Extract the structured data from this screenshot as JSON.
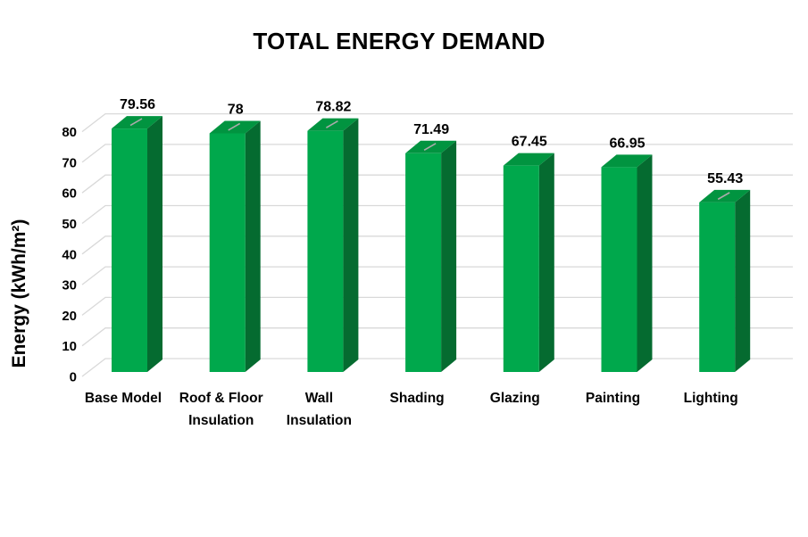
{
  "chart_data": {
    "type": "bar",
    "style": "3d-column",
    "title": "TOTAL ENERGY DEMAND",
    "xlabel": "",
    "ylabel": "Energy (kWh/m²)",
    "categories": [
      "Base Model",
      "Roof & Floor\nInsulation",
      "Wall\nInsulation",
      "Shading",
      "Glazing",
      "Painting",
      "Lighting"
    ],
    "values": [
      79.56,
      78,
      78.82,
      71.49,
      67.45,
      66.95,
      55.43
    ],
    "value_labels": [
      "79.56",
      "78",
      "78.82",
      "71.49",
      "67.45",
      "66.95",
      "55.43"
    ],
    "yticks": [
      0,
      10,
      20,
      30,
      40,
      50,
      60,
      70,
      80
    ],
    "ylim": [
      0,
      80
    ],
    "grid": true,
    "legend": false,
    "colors": {
      "bar_front": "#00A84C",
      "bar_side": "#056B30",
      "bar_top": "#019440",
      "top_streak": "#ABABAB",
      "gridline": "#D9D9D9",
      "text": "#000000",
      "background": "#FFFFFF"
    }
  }
}
